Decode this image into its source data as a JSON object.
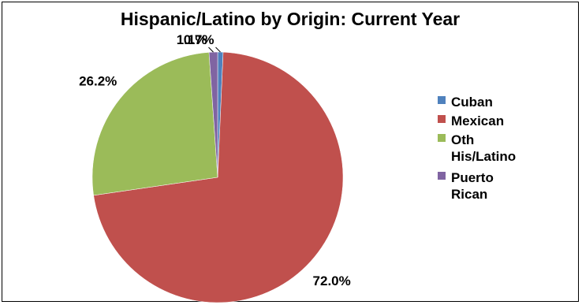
{
  "chart_data": {
    "type": "pie",
    "title": "Hispanic/Latino by Origin: Current Year",
    "legend_position": "right",
    "slices": [
      {
        "name": "Cuban",
        "legend_label": "Cuban",
        "value": 0.7,
        "label": "0.7%",
        "color": "#4f81bd"
      },
      {
        "name": "Mexican",
        "legend_label": "Mexican",
        "value": 72.0,
        "label": "72.0%",
        "color": "#c0504d"
      },
      {
        "name": "Oth His/Latino",
        "legend_label": "Oth\nHis/Latino",
        "value": 26.2,
        "label": "26.2%",
        "color": "#9bbb59"
      },
      {
        "name": "Puerto Rican",
        "legend_label": "Puerto\nRican",
        "value": 1.1,
        "label": "1.1%",
        "color": "#8064a2"
      }
    ]
  }
}
